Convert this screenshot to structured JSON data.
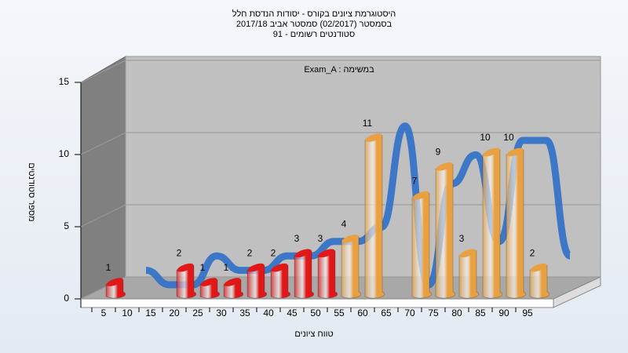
{
  "chart_data": {
    "type": "bar3d",
    "title": [
      "היסטוגרמת ציונים בקורס - יסודות הנדסת חלל",
      "בסמסטר (02/2017) סמסטר אביב 2017/18",
      "סטודנטים רשומים - 91"
    ],
    "legend_text": "Exam_A : במשימה",
    "x_label": "טווח ציונים",
    "y_label": "מספר סטודנטים",
    "categories": [
      5,
      10,
      15,
      20,
      25,
      30,
      35,
      40,
      45,
      50,
      55,
      60,
      65,
      70,
      75,
      80,
      85,
      90,
      95
    ],
    "values": [
      1,
      0,
      0,
      2,
      1,
      1,
      2,
      2,
      3,
      3,
      4,
      11,
      0,
      7,
      9,
      3,
      10,
      10,
      2
    ],
    "colors": [
      "#e01818",
      "#e01818",
      "#e01818",
      "#e01818",
      "#e01818",
      "#e01818",
      "#e01818",
      "#e01818",
      "#e01818",
      "#e01818",
      "#e8a040",
      "#e8a040",
      "#e8a040",
      "#e8a040",
      "#e8a040",
      "#e8a040",
      "#e8a040",
      "#e8a040",
      "#e8a040"
    ],
    "trend_color": "#2f6fc8",
    "ylim": [
      0,
      15
    ],
    "yticks": [
      0,
      5,
      10,
      15
    ],
    "grid": true
  }
}
